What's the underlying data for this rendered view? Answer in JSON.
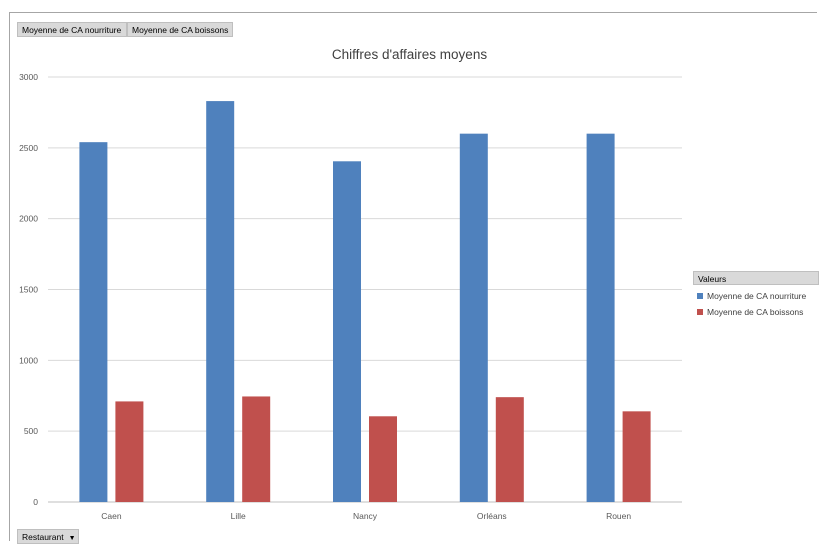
{
  "field_buttons": {
    "values": [
      "Moyenne de CA nourriture",
      "Moyenne de CA boissons"
    ],
    "axis": "Restaurant"
  },
  "legend": {
    "header": "Valeurs"
  },
  "chart_data": {
    "type": "bar",
    "title": "Chiffres d'affaires moyens",
    "categories": [
      "Caen",
      "Lille",
      "Nancy",
      "Orléans",
      "Rouen"
    ],
    "series": [
      {
        "name": "Moyenne de CA nourriture",
        "color": "#4f81bd",
        "values": [
          2540,
          2830,
          2405,
          2600,
          2600
        ]
      },
      {
        "name": "Moyenne de CA boissons",
        "color": "#c0504d",
        "values": [
          710,
          745,
          605,
          740,
          640
        ]
      }
    ],
    "ylim": [
      0,
      3000
    ],
    "yticks": [
      0,
      500,
      1000,
      1500,
      2000,
      2500,
      3000
    ],
    "grid": true,
    "legend_position": "right"
  }
}
